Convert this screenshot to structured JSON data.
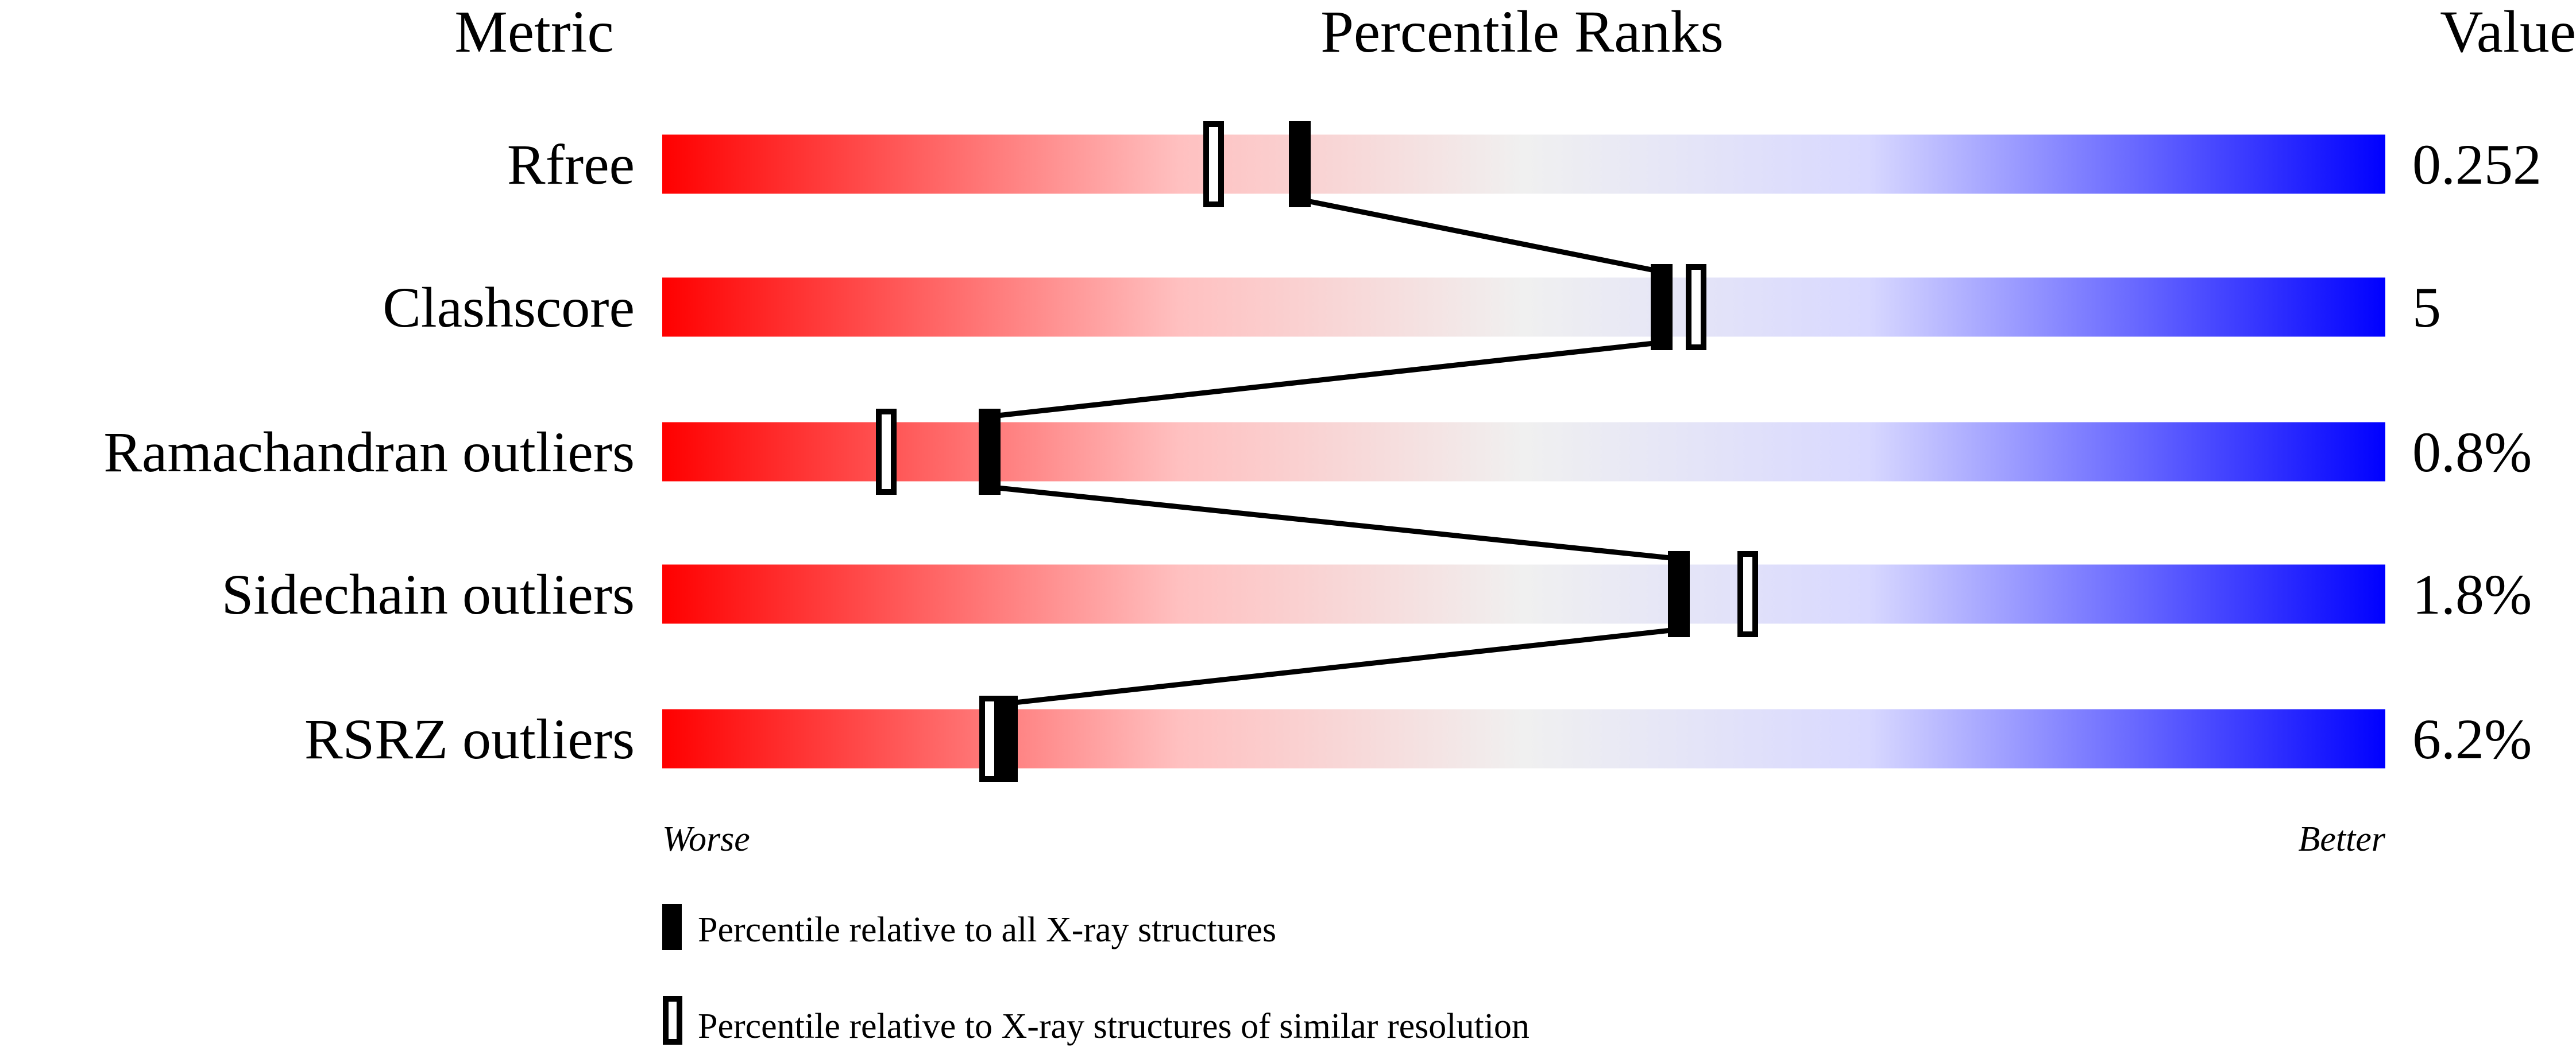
{
  "chart_data": {
    "type": "percentile-bar",
    "headers": {
      "metric": "Metric",
      "ranks": "Percentile Ranks",
      "value": "Value"
    },
    "xlim": [
      0,
      100
    ],
    "axis_labels": {
      "left": "Worse",
      "right": "Better"
    },
    "gradient_colors": [
      "#ff0000",
      "#f0f0f0",
      "#0000ff"
    ],
    "metrics": [
      {
        "name": "Rfree",
        "value": "0.252",
        "percentile_all": 37,
        "percentile_similar": 32
      },
      {
        "name": "Clashscore",
        "value": "5",
        "percentile_all": 58,
        "percentile_similar": 60
      },
      {
        "name": "Ramachandran outliers",
        "value": "0.8%",
        "percentile_all": 19,
        "percentile_similar": 13
      },
      {
        "name": "Sidechain outliers",
        "value": "1.8%",
        "percentile_all": 59,
        "percentile_similar": 63
      },
      {
        "name": "RSRZ outliers",
        "value": "6.2%",
        "percentile_all": 20,
        "percentile_similar": 19
      }
    ],
    "legend": {
      "filled": "Percentile relative to all X-ray structures",
      "open": "Percentile relative to X-ray structures of similar resolution"
    }
  }
}
